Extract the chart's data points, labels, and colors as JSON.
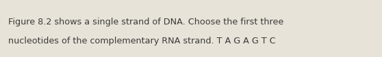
{
  "line1": "Figure 8.2 shows a single strand of DNA. Choose the first three",
  "line2": "nucleotides of the complementary RNA strand. T A G A G T C",
  "text_color": "#3a3a3a",
  "background_color": "#e8e3d8",
  "font_size": 9.2,
  "fig_width": 5.58,
  "fig_height": 0.84,
  "dpi": 100
}
